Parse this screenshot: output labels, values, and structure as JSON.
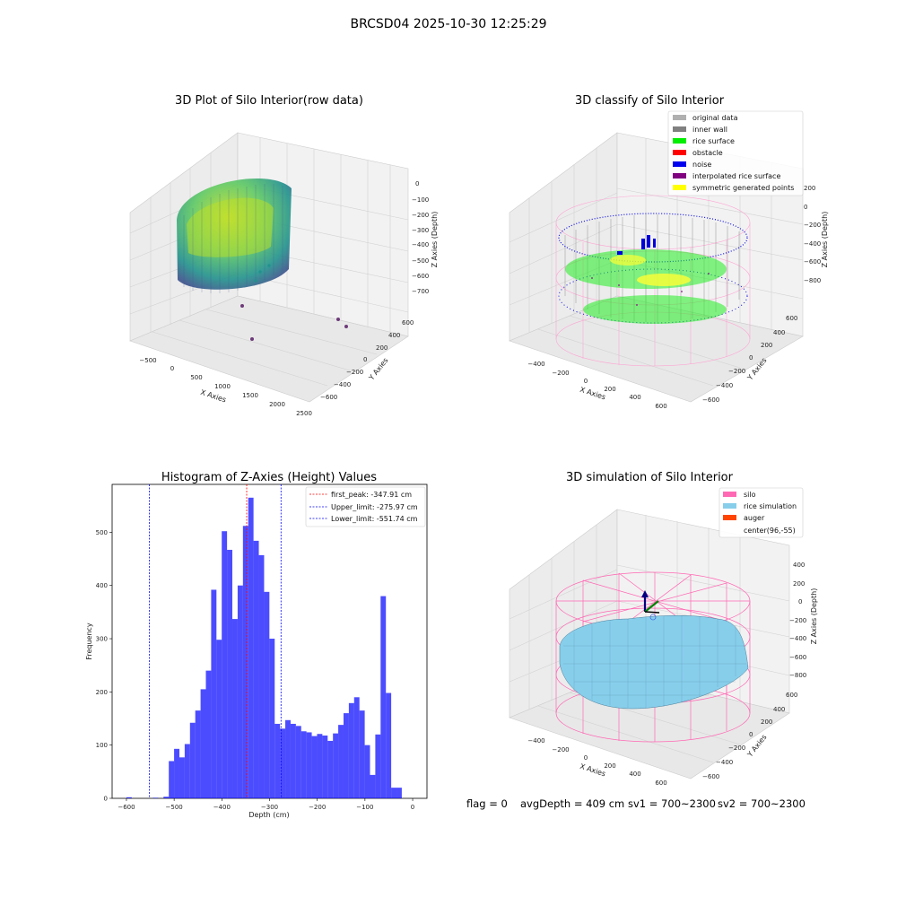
{
  "figure": {
    "suptitle": "BRCSD04 2025-10-30 12:25:29",
    "footer": {
      "flag": "flag = 0",
      "avg_depth": "avgDepth = 409 cm",
      "sv1": "sv1 = 700~2300",
      "sv2": "sv2 = 700~2300"
    }
  },
  "panels": {
    "raw": {
      "title": "3D Plot of Silo Interior(row data)",
      "xlabel": "X Axies",
      "ylabel": "Y Axies",
      "zlabel": "Z Axies (Depth)",
      "xticks": [
        "−500",
        "0",
        "500",
        "1000",
        "1500",
        "2000",
        "2500"
      ],
      "yticks": [
        "600",
        "400",
        "200",
        "0",
        "−200",
        "−400",
        "−600"
      ],
      "zticks": [
        "0",
        "−100",
        "−200",
        "−300",
        "−400",
        "−500",
        "−600",
        "−700"
      ]
    },
    "classify": {
      "title": "3D classify of Silo Interior",
      "xlabel": "X Axies",
      "ylabel": "Y Axies",
      "zlabel": "Z Axies (Depth)",
      "xticks": [
        "−400",
        "−200",
        "0",
        "200",
        "400",
        "600"
      ],
      "yticks": [
        "600",
        "400",
        "200",
        "0",
        "−200",
        "−400",
        "−600"
      ],
      "zticks": [
        "200",
        "0",
        "−200",
        "−400",
        "−600",
        "−800"
      ],
      "legend": [
        {
          "label": "original data",
          "color": "#b0b0b0"
        },
        {
          "label": "inner wall",
          "color": "#808080"
        },
        {
          "label": "rice surface",
          "color": "#00ee00"
        },
        {
          "label": "obstacle",
          "color": "#ff0000"
        },
        {
          "label": "noise",
          "color": "#0000ee"
        },
        {
          "label": "interpolated rice surface",
          "color": "#800080"
        },
        {
          "label": "symmetric generated points",
          "color": "#ffff00"
        }
      ]
    },
    "simulation": {
      "title": "3D simulation of Silo Interior",
      "xlabel": "X Axies",
      "ylabel": "Y Axies",
      "zlabel": "Z Axies (Depth)",
      "xticks": [
        "−400",
        "−200",
        "0",
        "200",
        "400",
        "600"
      ],
      "yticks": [
        "600",
        "400",
        "200",
        "0",
        "−200",
        "−400",
        "−600"
      ],
      "zticks": [
        "400",
        "200",
        "0",
        "−200",
        "−400",
        "−600",
        "−800"
      ],
      "legend": [
        {
          "label": "silo",
          "color": "#ff69b4"
        },
        {
          "label": "rice simulation",
          "color": "#87ceeb"
        },
        {
          "label": "auger",
          "color": "#ff4500"
        },
        {
          "label": "center(96,-55)",
          "color": "none"
        }
      ]
    }
  },
  "chart_data": [
    {
      "type": "histogram",
      "title": "Histogram of Z-Axies (Height) Values",
      "xlabel": "Depth (cm)",
      "ylabel": "Frequency",
      "xlim": [
        -630,
        30
      ],
      "ylim": [
        0,
        590
      ],
      "xticks": [
        -600,
        -500,
        -400,
        -300,
        -200,
        -100,
        0
      ],
      "xtick_labels": [
        "−600",
        "−500",
        "−400",
        "−300",
        "−200",
        "−100",
        "0"
      ],
      "yticks": [
        0,
        100,
        200,
        300,
        400,
        500
      ],
      "bar_color": "#0000ff",
      "bin_width": 11.1,
      "bin_start": -600,
      "values": [
        2,
        0,
        0,
        0,
        0,
        1,
        0,
        3,
        70,
        93,
        77,
        102,
        142,
        165,
        205,
        240,
        392,
        298,
        502,
        467,
        337,
        400,
        512,
        565,
        484,
        457,
        388,
        300,
        140,
        131,
        147,
        140,
        136,
        126,
        124,
        117,
        121,
        118,
        108,
        122,
        138,
        160,
        179,
        190,
        165,
        100,
        44,
        120,
        380,
        198,
        20,
        20
      ],
      "lines": [
        {
          "label": "first_peak: -347.91 cm",
          "x": -347.91,
          "color": "#ff0000"
        },
        {
          "label": "Upper_limit: -275.97 cm",
          "x": -275.97,
          "color": "#0000ff"
        },
        {
          "label": "Lower_limit: -551.74 cm",
          "x": -551.74,
          "color": "#0000ff"
        }
      ]
    }
  ]
}
